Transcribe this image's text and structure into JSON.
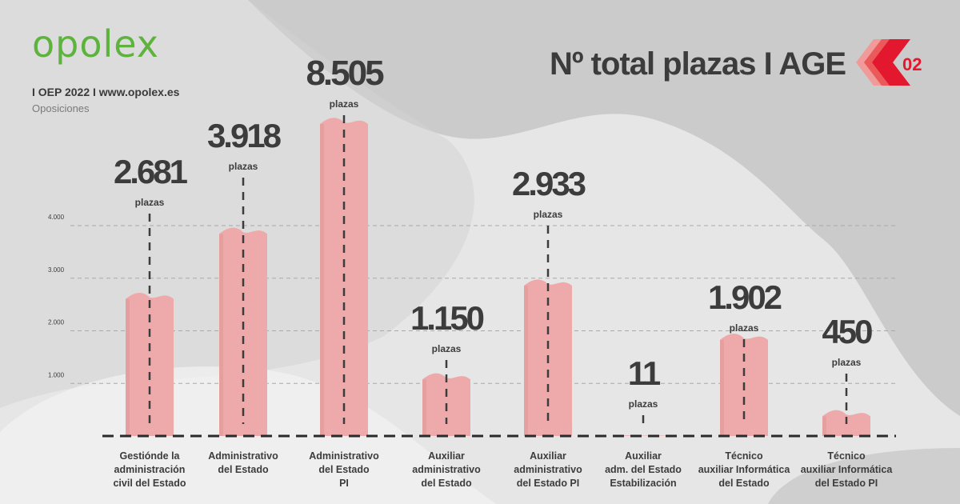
{
  "brand": {
    "logo_text": "opolex",
    "tagline": "I OEP 2022 I www.opolex.es",
    "category": "Oposiciones",
    "logo_color": "#5db33d"
  },
  "header": {
    "title": "Nº total plazas I AGE",
    "badge_number": "02",
    "badge_color": "#e3172d"
  },
  "colors": {
    "background": "#e6e6e6",
    "bar": "#eeaaaa",
    "bar_shade": "#d48c8c",
    "text": "#3c3c3c"
  },
  "chart_data": {
    "type": "bar",
    "categories": [
      [
        "Gestiónde la",
        "administración",
        "civil del Estado"
      ],
      [
        "Administrativo",
        "del Estado"
      ],
      [
        "Administrativo",
        "del Estado",
        "PI"
      ],
      [
        "Auxiliar",
        "administrativo",
        "del Estado"
      ],
      [
        "Auxiliar",
        "administrativo",
        "del Estado PI"
      ],
      [
        "Auxiliar",
        "adm. del Estado",
        "Estabilización"
      ],
      [
        "Técnico",
        "auxiliar Informática",
        "del Estado"
      ],
      [
        "Técnico",
        "auxiliar Informática",
        "del Estado PI"
      ]
    ],
    "values": [
      2681,
      3918,
      8505,
      1150,
      2933,
      11,
      1902,
      450
    ],
    "value_labels": [
      "2.681",
      "3.918",
      "8.505",
      "1.150",
      "2.933",
      "11",
      "1.902",
      "450"
    ],
    "unit_label": "plazas",
    "y_ticks": [
      1000,
      2000,
      3000,
      4000
    ],
    "y_tick_labels": [
      "1.000",
      "2.000",
      "3.000",
      "4.000"
    ],
    "ylim": [
      0,
      4000
    ],
    "gridlines": true,
    "note": "Bars for 8.505 is drawn truncated above the 4.000 gridline."
  }
}
